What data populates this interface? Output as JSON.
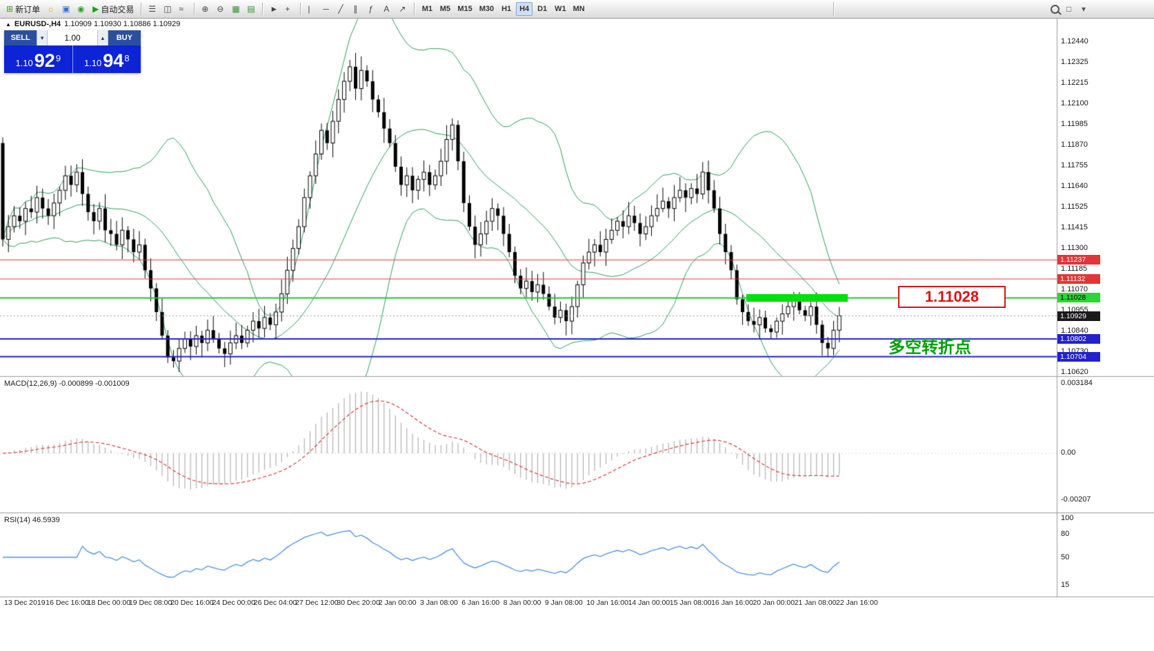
{
  "toolbar": {
    "groups": [
      {
        "items": [
          {
            "name": "new-order-button",
            "icon": "order-form-icon",
            "glyph": "⊞",
            "glyph_color": "#2fa12f",
            "label": "新订单"
          },
          {
            "name": "charts-button",
            "icon": "chart-folder-icon",
            "glyph": "☼",
            "glyph_color": "#d8a400"
          },
          {
            "name": "profiles-button",
            "icon": "profiles-icon",
            "glyph": "▣",
            "glyph_color": "#3b6fd4"
          },
          {
            "name": "sound-button",
            "icon": "sound-icon",
            "glyph": "◉",
            "glyph_color": "#2fa12f"
          },
          {
            "name": "autotrading-button",
            "icon": "play-icon",
            "glyph": "▶",
            "glyph_color": "#17a317",
            "label": "自动交易"
          }
        ]
      },
      {
        "items": [
          {
            "name": "bar-chart-button",
            "icon": "bar-chart-icon",
            "glyph": "☰",
            "glyph_color": "#444444"
          },
          {
            "name": "candlestick-button",
            "icon": "candlestick-icon",
            "glyph": "◫",
            "glyph_color": "#444444"
          },
          {
            "name": "line-chart-button",
            "icon": "line-chart-icon",
            "glyph": "≈",
            "glyph_color": "#444444"
          }
        ]
      },
      {
        "items": [
          {
            "name": "zoom-in-button",
            "icon": "zoom-in-icon",
            "glyph": "⊕",
            "glyph_color": "#444444"
          },
          {
            "name": "zoom-out-button",
            "icon": "zoom-out-icon",
            "glyph": "⊖",
            "glyph_color": "#444444"
          },
          {
            "name": "tile-windows-button",
            "icon": "tile-windows-icon",
            "glyph": "▦",
            "glyph_color": "#2f8f2f"
          },
          {
            "name": "arrange-windows-button",
            "icon": "arrange-windows-icon",
            "glyph": "▤",
            "glyph_color": "#2f8f2f"
          }
        ]
      },
      {
        "items": [
          {
            "name": "cursor-button",
            "icon": "cursor-icon",
            "glyph": "►",
            "glyph_color": "#444444"
          },
          {
            "name": "crosshair-button",
            "icon": "crosshair-icon",
            "glyph": "+",
            "glyph_color": "#444444"
          }
        ]
      },
      {
        "items": [
          {
            "name": "vertical-line-button",
            "icon": "vertical-line-icon",
            "glyph": "|",
            "glyph_color": "#444444"
          },
          {
            "name": "horizontal-line-button",
            "icon": "horizontal-line-icon",
            "glyph": "─",
            "glyph_color": "#444444"
          },
          {
            "name": "trendline-button",
            "icon": "trendline-icon",
            "glyph": "╱",
            "glyph_color": "#444444"
          },
          {
            "name": "channel-button",
            "icon": "channel-icon",
            "glyph": "∥",
            "glyph_color": "#444444"
          },
          {
            "name": "fibonacci-button",
            "icon": "fibonacci-icon",
            "glyph": "ƒ",
            "glyph_color": "#444444"
          },
          {
            "name": "text-button",
            "icon": "text-icon",
            "glyph": "A",
            "glyph_color": "#444444"
          },
          {
            "name": "arrows-button",
            "icon": "arrow-icon",
            "glyph": "↗",
            "glyph_color": "#444444"
          }
        ]
      }
    ],
    "timeframes": [
      "M1",
      "M5",
      "M15",
      "M30",
      "H1",
      "H4",
      "D1",
      "W1",
      "MN"
    ],
    "active_timeframe": "H4",
    "right_items": [
      {
        "name": "search-button",
        "icon": "magnifier-icon",
        "glyph": ""
      },
      {
        "name": "new-window-button",
        "icon": "window-icon",
        "glyph": "□"
      },
      {
        "name": "options-button",
        "icon": "chevron-down-icon",
        "glyph": "▾"
      }
    ]
  },
  "quote_panel": {
    "sell_label": "SELL",
    "buy_label": "BUY",
    "lot": "1.00",
    "sell_big": "1.10",
    "sell_pips": "92",
    "sell_sup": "9",
    "buy_big": "1.10",
    "buy_pips": "94",
    "buy_sup": "8"
  },
  "chart": {
    "header_symbol": "EURUSD-,H4",
    "header_ohlc": "1.10909 1.10930 1.10886 1.10929",
    "annotation_price": "1.11028",
    "annotation_note": "多空转折点",
    "price_tags": [
      {
        "text": "1.11237",
        "bg": "#e03636",
        "fg": "#ffffff",
        "price": 1.11237
      },
      {
        "text": "1.11132",
        "bg": "#e03636",
        "fg": "#ffffff",
        "price": 1.11132
      },
      {
        "text": "1.11028",
        "bg": "#2fd435",
        "fg": "#000000",
        "price": 1.11028
      },
      {
        "text": "1.10929",
        "bg": "#1a1a1a",
        "fg": "#ffffff",
        "price": 1.10929
      },
      {
        "text": "1.10802",
        "bg": "#2222cc",
        "fg": "#ffffff",
        "price": 1.10802
      },
      {
        "text": "1.10704",
        "bg": "#2222cc",
        "fg": "#ffffff",
        "price": 1.10704
      }
    ]
  },
  "macd": {
    "label": "MACD(12,26,9) -0.000899 -0.001009",
    "axis": [
      "0.003184",
      "0.00",
      "-0.00207"
    ]
  },
  "rsi": {
    "label": "RSI(14) 46.5939",
    "axis": [
      "100",
      "80",
      "50",
      "15"
    ]
  },
  "chart_data": {
    "type": "candlestick",
    "symbol": "EURUSD-",
    "timeframe": "H4",
    "ohlc_header": {
      "open": "1.10909",
      "high": "1.10930",
      "low": "1.10886",
      "close": "1.10929"
    },
    "first_open": 1.1188,
    "closes": [
      1.1135,
      1.1142,
      1.1148,
      1.1145,
      1.1152,
      1.115,
      1.1158,
      1.1152,
      1.1148,
      1.1155,
      1.1162,
      1.117,
      1.1165,
      1.1172,
      1.116,
      1.115,
      1.1145,
      1.1152,
      1.114,
      1.1138,
      1.1132,
      1.114,
      1.1135,
      1.1128,
      1.1132,
      1.1118,
      1.1108,
      1.1095,
      1.1082,
      1.107,
      1.1068,
      1.1075,
      1.108,
      1.1076,
      1.1082,
      1.1078,
      1.1085,
      1.108,
      1.1075,
      1.1072,
      1.1078,
      1.1082,
      1.1078,
      1.1085,
      1.109,
      1.1086,
      1.1092,
      1.1088,
      1.1095,
      1.1105,
      1.1118,
      1.113,
      1.1142,
      1.1158,
      1.117,
      1.1182,
      1.1195,
      1.1188,
      1.12,
      1.1212,
      1.1222,
      1.123,
      1.1218,
      1.1228,
      1.1222,
      1.1212,
      1.1205,
      1.1196,
      1.1188,
      1.1175,
      1.1165,
      1.117,
      1.1162,
      1.1168,
      1.1172,
      1.1165,
      1.117,
      1.1178,
      1.119,
      1.1198,
      1.1178,
      1.1155,
      1.1142,
      1.1132,
      1.1138,
      1.1145,
      1.1152,
      1.1148,
      1.1138,
      1.1128,
      1.1115,
      1.1108,
      1.1112,
      1.1106,
      1.111,
      1.1105,
      1.1098,
      1.1092,
      1.1096,
      1.109,
      1.1098,
      1.111,
      1.1122,
      1.1128,
      1.1132,
      1.1128,
      1.1135,
      1.114,
      1.1145,
      1.1142,
      1.1148,
      1.1144,
      1.1138,
      1.1142,
      1.1148,
      1.1152,
      1.1156,
      1.1152,
      1.1158,
      1.1162,
      1.1158,
      1.1163,
      1.116,
      1.1172,
      1.1162,
      1.1152,
      1.1138,
      1.1128,
      1.1118,
      1.1102,
      1.1095,
      1.109,
      1.1088,
      1.1092,
      1.1086,
      1.1084,
      1.109,
      1.1094,
      1.1098,
      1.1102,
      1.1096,
      1.1093,
      1.1098,
      1.1088,
      1.1078,
      1.1075,
      1.1085,
      1.10929
    ],
    "indicators": [
      {
        "name": "Bollinger Bands",
        "period": 20,
        "deviation": 2,
        "color": "#2aa05a"
      },
      {
        "name": "MACD",
        "fast": 12,
        "slow": 26,
        "signal": 9,
        "values": [
          "-0.000899",
          "-0.001009"
        ]
      },
      {
        "name": "RSI",
        "period": 14,
        "value": "46.5939"
      }
    ],
    "hlines": [
      {
        "price": 1.11237,
        "color": "#e03636",
        "width": 1
      },
      {
        "price": 1.11132,
        "color": "#e03636",
        "width": 1
      },
      {
        "price": 1.11028,
        "color": "#27c42c",
        "width": 2
      },
      {
        "price": 1.10802,
        "color": "#2222cc",
        "width": 2
      },
      {
        "price": 1.10704,
        "color": "#2222cc",
        "width": 2
      }
    ],
    "current_price": 1.10929,
    "highlight_rect": {
      "price": 1.11028,
      "color": "#00df10"
    },
    "y_axis_ticks": [
      "1.12440",
      "1.12325",
      "1.12215",
      "1.12100",
      "1.11985",
      "1.11870",
      "1.11755",
      "1.11640",
      "1.11525",
      "1.11415",
      "1.11300",
      "1.11185",
      "1.11070",
      "1.10955",
      "1.10840",
      "1.10730",
      "1.10620"
    ],
    "x_axis_dates": [
      "13 Dec 2019",
      "16 Dec 16:00",
      "18 Dec 00:00",
      "19 Dec 08:00",
      "20 Dec 16:00",
      "24 Dec 00:00",
      "26 Dec 04:00",
      "27 Dec 12:00",
      "30 Dec 20:00",
      "2 Jan 00:00",
      "3 Jan 08:00",
      "6 Jan 16:00",
      "8 Jan 00:00",
      "9 Jan 08:00",
      "10 Jan 16:00",
      "14 Jan 00:00",
      "15 Jan 08:00",
      "16 Jan 16:00",
      "20 Jan 00:00",
      "21 Jan 08:00",
      "22 Jan 16:00"
    ],
    "macd_axis_ticks": [
      "0.003184",
      "0.00",
      "-0.00207"
    ],
    "rsi_axis_ticks": [
      "100",
      "80",
      "50",
      "15"
    ]
  }
}
